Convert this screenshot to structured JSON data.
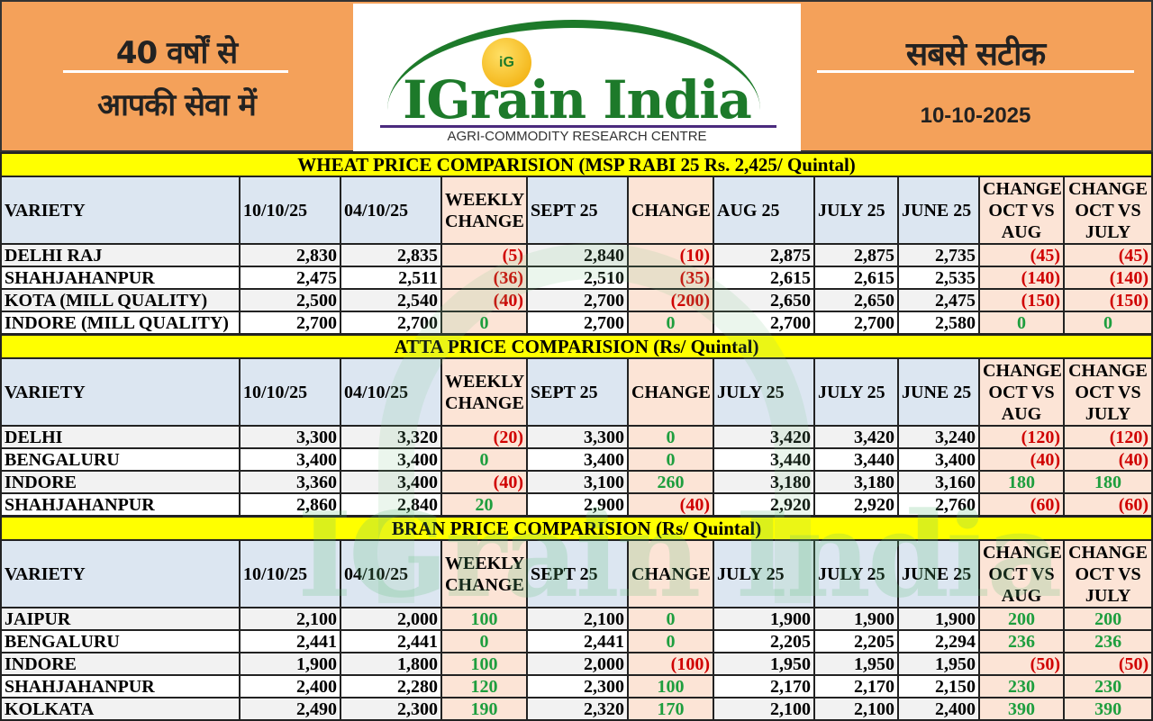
{
  "header": {
    "left_line1": "40 वर्षों से",
    "left_line2": "आपकी सेवा में",
    "logo": {
      "mark": "iG",
      "name": "IGrain India",
      "subtitle": "AGRI-COMMODITY RESEARCH CENTRE"
    },
    "right_title": "सबसे सटीक",
    "date": "10-10-2025"
  },
  "colors": {
    "negative": "#d00000",
    "positive": "#1e9e3e",
    "title_bg": "#ffff00",
    "header_bg": "#dce6f1",
    "change_bg": "#fce4d6",
    "banner": "#f4a15a"
  },
  "sections": [
    {
      "title": "WHEAT PRICE COMPARISION (MSP RABI 25 Rs. 2,425/ Quintal)",
      "columns": [
        "VARIETY",
        "10/10/25",
        "04/10/25",
        "WEEKLY CHANGE",
        "SEPT 25",
        "CHANGE",
        "AUG 25",
        "JULY 25",
        "JUNE 25",
        "CHANGE OCT VS AUG",
        "CHANGE OCT VS JULY"
      ],
      "rows": [
        [
          "DELHI RAJ",
          "2,830",
          "2,835",
          "(5)",
          "2,840",
          "(10)",
          "2,875",
          "2,875",
          "2,735",
          "(45)",
          "(45)"
        ],
        [
          "SHAHJAHANPUR",
          "2,475",
          "2,511",
          "(36)",
          "2,510",
          "(35)",
          "2,615",
          "2,615",
          "2,535",
          "(140)",
          "(140)"
        ],
        [
          "KOTA (MILL QUALITY)",
          "2,500",
          "2,540",
          "(40)",
          "2,700",
          "(200)",
          "2,650",
          "2,650",
          "2,475",
          "(150)",
          "(150)"
        ],
        [
          "INDORE (MILL QUALITY)",
          "2,700",
          "2,700",
          "0",
          "2,700",
          "0",
          "2,700",
          "2,700",
          "2,580",
          "0",
          "0"
        ]
      ]
    },
    {
      "title": "ATTA PRICE COMPARISION (Rs/ Quintal)",
      "columns": [
        "VARIETY",
        "10/10/25",
        "04/10/25",
        "WEEKLY CHANGE",
        "SEPT 25",
        "CHANGE",
        "JULY 25",
        "JULY 25",
        "JUNE 25",
        "CHANGE OCT VS AUG",
        "CHANGE OCT VS JULY"
      ],
      "rows": [
        [
          "DELHI",
          "3,300",
          "3,320",
          "(20)",
          "3,300",
          "0",
          "3,420",
          "3,420",
          "3,240",
          "(120)",
          "(120)"
        ],
        [
          "BENGALURU",
          "3,400",
          "3,400",
          "0",
          "3,400",
          "0",
          "3,440",
          "3,440",
          "3,400",
          "(40)",
          "(40)"
        ],
        [
          "INDORE",
          "3,360",
          "3,400",
          "(40)",
          "3,100",
          "260",
          "3,180",
          "3,180",
          "3,160",
          "180",
          "180"
        ],
        [
          "SHAHJAHANPUR",
          "2,860",
          "2,840",
          "20",
          "2,900",
          "(40)",
          "2,920",
          "2,920",
          "2,760",
          "(60)",
          "(60)"
        ]
      ]
    },
    {
      "title": "BRAN PRICE COMPARISION (Rs/ Quintal)",
      "columns": [
        "VARIETY",
        "10/10/25",
        "04/10/25",
        "WEEKLY CHANGE",
        "SEPT 25",
        "CHANGE",
        "JULY 25",
        "JULY 25",
        "JUNE 25",
        "CHANGE OCT VS AUG",
        "CHANGE OCT VS JULY"
      ],
      "rows": [
        [
          "JAIPUR",
          "2,100",
          "2,000",
          "100",
          "2,100",
          "0",
          "1,900",
          "1,900",
          "1,900",
          "200",
          "200"
        ],
        [
          "BENGALURU",
          "2,441",
          "2,441",
          "0",
          "2,441",
          "0",
          "2,205",
          "2,205",
          "2,294",
          "236",
          "236"
        ],
        [
          "INDORE",
          "1,900",
          "1,800",
          "100",
          "2,000",
          "(100)",
          "1,950",
          "1,950",
          "1,950",
          "(50)",
          "(50)"
        ],
        [
          "SHAHJAHANPUR",
          "2,400",
          "2,280",
          "120",
          "2,300",
          "100",
          "2,170",
          "2,170",
          "2,150",
          "230",
          "230"
        ],
        [
          "KOLKATA",
          "2,490",
          "2,300",
          "190",
          "2,320",
          "170",
          "2,100",
          "2,100",
          "2,400",
          "390",
          "390"
        ]
      ]
    }
  ]
}
